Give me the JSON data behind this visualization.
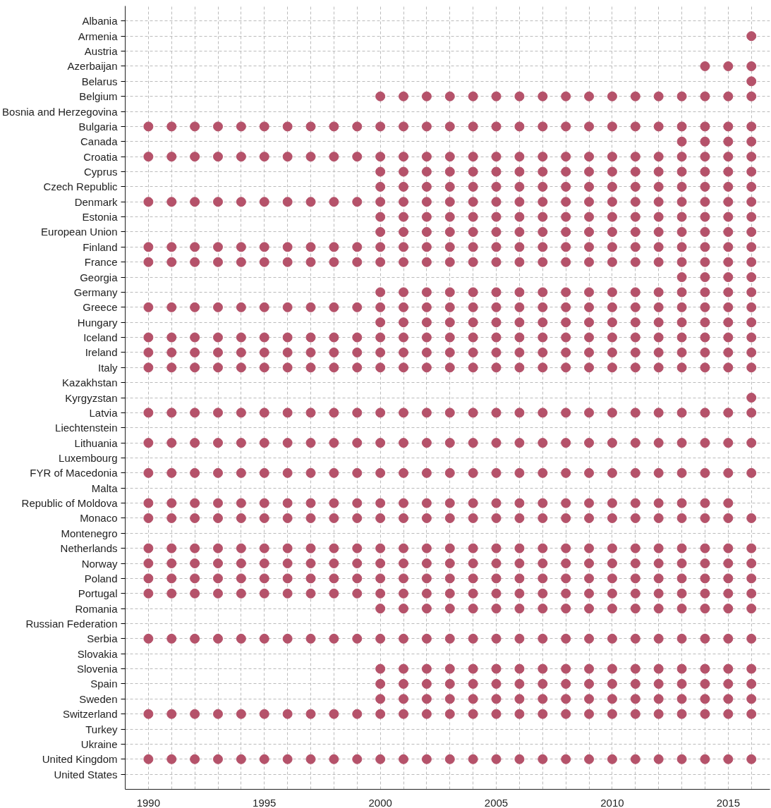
{
  "chart_data": {
    "type": "scatter",
    "orientation": "horizontal",
    "marker": "circle",
    "color": "#b5526a",
    "grid": true,
    "categories": [
      "Albania",
      "Armenia",
      "Austria",
      "Azerbaijan",
      "Belarus",
      "Belgium",
      "Bosnia and Herzegovina",
      "Bulgaria",
      "Canada",
      "Croatia",
      "Cyprus",
      "Czech Republic",
      "Denmark",
      "Estonia",
      "European Union",
      "Finland",
      "France",
      "Georgia",
      "Germany",
      "Greece",
      "Hungary",
      "Iceland",
      "Ireland",
      "Italy",
      "Kazakhstan",
      "Kyrgyzstan",
      "Latvia",
      "Liechtenstein",
      "Lithuania",
      "Luxembourg",
      "FYR of Macedonia",
      "Malta",
      "Republic of Moldova",
      "Monaco",
      "Montenegro",
      "Netherlands",
      "Norway",
      "Poland",
      "Portugal",
      "Romania",
      "Russian Federation",
      "Serbia",
      "Slovakia",
      "Slovenia",
      "Spain",
      "Sweden",
      "Switzerland",
      "Turkey",
      "Ukraine",
      "United Kingdom",
      "United States"
    ],
    "xlim": [
      1989,
      2016.8
    ],
    "xticks": [
      1990,
      {
        "value": 1991,
        "label": null
      },
      {
        "value": 1992,
        "label": null
      },
      {
        "value": 1993,
        "label": null
      },
      {
        "value": 1994,
        "label": null
      },
      1995,
      {
        "value": 1996,
        "label": null
      },
      {
        "value": 1997,
        "label": null
      },
      {
        "value": 1998,
        "label": null
      },
      {
        "value": 1999,
        "label": null
      },
      2000,
      {
        "value": 2001,
        "label": null
      },
      {
        "value": 2002,
        "label": null
      },
      {
        "value": 2003,
        "label": null
      },
      {
        "value": 2004,
        "label": null
      },
      2005,
      {
        "value": 2006,
        "label": null
      },
      {
        "value": 2007,
        "label": null
      },
      {
        "value": 2008,
        "label": null
      },
      {
        "value": 2009,
        "label": null
      },
      2010,
      {
        "value": 2011,
        "label": null
      },
      {
        "value": 2012,
        "label": null
      },
      {
        "value": 2013,
        "label": null
      },
      {
        "value": 2014,
        "label": null
      },
      2015,
      {
        "value": 2016,
        "label": null
      }
    ],
    "series": [
      {
        "values": [
          null,
          null,
          null,
          null,
          null,
          null,
          null,
          1990,
          null,
          1990,
          null,
          null,
          1990,
          null,
          null,
          1990,
          1990,
          null,
          null,
          1990,
          null,
          1990,
          1990,
          1990,
          null,
          null,
          1990,
          null,
          1990,
          null,
          1990,
          null,
          1990,
          1990,
          null,
          1990,
          1990,
          1990,
          1990,
          null,
          null,
          1990,
          null,
          null,
          null,
          null,
          1990,
          null,
          null,
          1990,
          null
        ]
      },
      {
        "values": [
          null,
          null,
          null,
          null,
          null,
          null,
          null,
          1991,
          null,
          1991,
          null,
          null,
          1991,
          null,
          null,
          1991,
          1991,
          null,
          null,
          1991,
          null,
          1991,
          1991,
          1991,
          null,
          null,
          1991,
          null,
          1991,
          null,
          1991,
          null,
          1991,
          1991,
          null,
          1991,
          1991,
          1991,
          1991,
          null,
          null,
          1991,
          null,
          null,
          null,
          null,
          1991,
          null,
          null,
          1991,
          null
        ]
      },
      {
        "values": [
          null,
          null,
          null,
          null,
          null,
          null,
          null,
          1992,
          null,
          1992,
          null,
          null,
          1992,
          null,
          null,
          1992,
          1992,
          null,
          null,
          1992,
          null,
          1992,
          1992,
          1992,
          null,
          null,
          1992,
          null,
          1992,
          null,
          1992,
          null,
          1992,
          1992,
          null,
          1992,
          1992,
          1992,
          1992,
          null,
          null,
          1992,
          null,
          null,
          null,
          null,
          1992,
          null,
          null,
          1992,
          null
        ]
      },
      {
        "values": [
          null,
          null,
          null,
          null,
          null,
          null,
          null,
          1993,
          null,
          1993,
          null,
          null,
          1993,
          null,
          null,
          1993,
          1993,
          null,
          null,
          1993,
          null,
          1993,
          1993,
          1993,
          null,
          null,
          1993,
          null,
          1993,
          null,
          1993,
          null,
          1993,
          1993,
          null,
          1993,
          1993,
          1993,
          1993,
          null,
          null,
          1993,
          null,
          null,
          null,
          null,
          1993,
          null,
          null,
          1993,
          null
        ]
      },
      {
        "values": [
          null,
          null,
          null,
          null,
          null,
          null,
          null,
          1994,
          null,
          1994,
          null,
          null,
          1994,
          null,
          null,
          1994,
          1994,
          null,
          null,
          1994,
          null,
          1994,
          1994,
          1994,
          null,
          null,
          1994,
          null,
          1994,
          null,
          1994,
          null,
          1994,
          1994,
          null,
          1994,
          1994,
          1994,
          1994,
          null,
          null,
          1994,
          null,
          null,
          null,
          null,
          1994,
          null,
          null,
          1994,
          null
        ]
      },
      {
        "values": [
          null,
          null,
          null,
          null,
          null,
          null,
          null,
          1995,
          null,
          1995,
          null,
          null,
          1995,
          null,
          null,
          1995,
          1995,
          null,
          null,
          1995,
          null,
          1995,
          1995,
          1995,
          null,
          null,
          1995,
          null,
          1995,
          null,
          1995,
          null,
          1995,
          1995,
          null,
          1995,
          1995,
          1995,
          1995,
          null,
          null,
          1995,
          null,
          null,
          null,
          null,
          1995,
          null,
          null,
          1995,
          null
        ]
      },
      {
        "values": [
          null,
          null,
          null,
          null,
          null,
          null,
          null,
          1996,
          null,
          1996,
          null,
          null,
          1996,
          null,
          null,
          1996,
          1996,
          null,
          null,
          1996,
          null,
          1996,
          1996,
          1996,
          null,
          null,
          1996,
          null,
          1996,
          null,
          1996,
          null,
          1996,
          1996,
          null,
          1996,
          1996,
          1996,
          1996,
          null,
          null,
          1996,
          null,
          null,
          null,
          null,
          1996,
          null,
          null,
          1996,
          null
        ]
      },
      {
        "values": [
          null,
          null,
          null,
          null,
          null,
          null,
          null,
          1997,
          null,
          1997,
          null,
          null,
          1997,
          null,
          null,
          1997,
          1997,
          null,
          null,
          1997,
          null,
          1997,
          1997,
          1997,
          null,
          null,
          1997,
          null,
          1997,
          null,
          1997,
          null,
          1997,
          1997,
          null,
          1997,
          1997,
          1997,
          1997,
          null,
          null,
          1997,
          null,
          null,
          null,
          null,
          1997,
          null,
          null,
          1997,
          null
        ]
      },
      {
        "values": [
          null,
          null,
          null,
          null,
          null,
          null,
          null,
          1998,
          null,
          1998,
          null,
          null,
          1998,
          null,
          null,
          1998,
          1998,
          null,
          null,
          1998,
          null,
          1998,
          1998,
          1998,
          null,
          null,
          1998,
          null,
          1998,
          null,
          1998,
          null,
          1998,
          1998,
          null,
          1998,
          1998,
          1998,
          1998,
          null,
          null,
          1998,
          null,
          null,
          null,
          null,
          1998,
          null,
          null,
          1998,
          null
        ]
      },
      {
        "values": [
          null,
          null,
          null,
          null,
          null,
          null,
          null,
          1999,
          null,
          1999,
          null,
          null,
          1999,
          null,
          null,
          1999,
          1999,
          null,
          null,
          1999,
          null,
          1999,
          1999,
          1999,
          null,
          null,
          1999,
          null,
          1999,
          null,
          1999,
          null,
          1999,
          1999,
          null,
          1999,
          1999,
          1999,
          1999,
          null,
          null,
          1999,
          null,
          null,
          null,
          null,
          1999,
          null,
          null,
          1999,
          null
        ]
      },
      {
        "values": [
          null,
          null,
          null,
          null,
          null,
          2000,
          null,
          2000,
          null,
          2000,
          2000,
          2000,
          2000,
          2000,
          2000,
          2000,
          2000,
          null,
          2000,
          2000,
          2000,
          2000,
          2000,
          2000,
          null,
          null,
          2000,
          null,
          2000,
          null,
          2000,
          null,
          2000,
          2000,
          null,
          2000,
          2000,
          2000,
          2000,
          2000,
          null,
          2000,
          null,
          2000,
          2000,
          2000,
          2000,
          null,
          null,
          2000,
          null
        ]
      },
      {
        "values": [
          null,
          null,
          null,
          null,
          null,
          2001,
          null,
          2001,
          null,
          2001,
          2001,
          2001,
          2001,
          2001,
          2001,
          2001,
          2001,
          null,
          2001,
          2001,
          2001,
          2001,
          2001,
          2001,
          null,
          null,
          2001,
          null,
          2001,
          null,
          2001,
          null,
          2001,
          2001,
          null,
          2001,
          2001,
          2001,
          2001,
          2001,
          null,
          2001,
          null,
          2001,
          2001,
          2001,
          2001,
          null,
          null,
          2001,
          null
        ]
      },
      {
        "values": [
          null,
          null,
          null,
          null,
          null,
          2002,
          null,
          2002,
          null,
          2002,
          2002,
          2002,
          2002,
          2002,
          2002,
          2002,
          2002,
          null,
          2002,
          2002,
          2002,
          2002,
          2002,
          2002,
          null,
          null,
          2002,
          null,
          2002,
          null,
          2002,
          null,
          2002,
          2002,
          null,
          2002,
          2002,
          2002,
          2002,
          2002,
          null,
          2002,
          null,
          2002,
          2002,
          2002,
          2002,
          null,
          null,
          2002,
          null
        ]
      },
      {
        "values": [
          null,
          null,
          null,
          null,
          null,
          2003,
          null,
          2003,
          null,
          2003,
          2003,
          2003,
          2003,
          2003,
          2003,
          2003,
          2003,
          null,
          2003,
          2003,
          2003,
          2003,
          2003,
          2003,
          null,
          null,
          2003,
          null,
          2003,
          null,
          2003,
          null,
          2003,
          2003,
          null,
          2003,
          2003,
          2003,
          2003,
          2003,
          null,
          2003,
          null,
          2003,
          2003,
          2003,
          2003,
          null,
          null,
          2003,
          null
        ]
      },
      {
        "values": [
          null,
          null,
          null,
          null,
          null,
          2004,
          null,
          2004,
          null,
          2004,
          2004,
          2004,
          2004,
          2004,
          2004,
          2004,
          2004,
          null,
          2004,
          2004,
          2004,
          2004,
          2004,
          2004,
          null,
          null,
          2004,
          null,
          2004,
          null,
          2004,
          null,
          2004,
          2004,
          null,
          2004,
          2004,
          2004,
          2004,
          2004,
          null,
          2004,
          null,
          2004,
          2004,
          2004,
          2004,
          null,
          null,
          2004,
          null
        ]
      },
      {
        "values": [
          null,
          null,
          null,
          null,
          null,
          2005,
          null,
          2005,
          null,
          2005,
          2005,
          2005,
          2005,
          2005,
          2005,
          2005,
          2005,
          null,
          2005,
          2005,
          2005,
          2005,
          2005,
          2005,
          null,
          null,
          2005,
          null,
          2005,
          null,
          2005,
          null,
          2005,
          2005,
          null,
          2005,
          2005,
          2005,
          2005,
          2005,
          null,
          2005,
          null,
          2005,
          2005,
          2005,
          2005,
          null,
          null,
          2005,
          null
        ]
      },
      {
        "values": [
          null,
          null,
          null,
          null,
          null,
          2006,
          null,
          2006,
          null,
          2006,
          2006,
          2006,
          2006,
          2006,
          2006,
          2006,
          2006,
          null,
          2006,
          2006,
          2006,
          2006,
          2006,
          2006,
          null,
          null,
          2006,
          null,
          2006,
          null,
          2006,
          null,
          2006,
          2006,
          null,
          2006,
          2006,
          2006,
          2006,
          2006,
          null,
          2006,
          null,
          2006,
          2006,
          2006,
          2006,
          null,
          null,
          2006,
          null
        ]
      },
      {
        "values": [
          null,
          null,
          null,
          null,
          null,
          2007,
          null,
          2007,
          null,
          2007,
          2007,
          2007,
          2007,
          2007,
          2007,
          2007,
          2007,
          null,
          2007,
          2007,
          2007,
          2007,
          2007,
          2007,
          null,
          null,
          2007,
          null,
          2007,
          null,
          2007,
          null,
          2007,
          2007,
          null,
          2007,
          2007,
          2007,
          2007,
          2007,
          null,
          2007,
          null,
          2007,
          2007,
          2007,
          2007,
          null,
          null,
          2007,
          null
        ]
      },
      {
        "values": [
          null,
          null,
          null,
          null,
          null,
          2008,
          null,
          2008,
          null,
          2008,
          2008,
          2008,
          2008,
          2008,
          2008,
          2008,
          2008,
          null,
          2008,
          2008,
          2008,
          2008,
          2008,
          2008,
          null,
          null,
          2008,
          null,
          2008,
          null,
          2008,
          null,
          2008,
          2008,
          null,
          2008,
          2008,
          2008,
          2008,
          2008,
          null,
          2008,
          null,
          2008,
          2008,
          2008,
          2008,
          null,
          null,
          2008,
          null
        ]
      },
      {
        "values": [
          null,
          null,
          null,
          null,
          null,
          2009,
          null,
          2009,
          null,
          2009,
          2009,
          2009,
          2009,
          2009,
          2009,
          2009,
          2009,
          null,
          2009,
          2009,
          2009,
          2009,
          2009,
          2009,
          null,
          null,
          2009,
          null,
          2009,
          null,
          2009,
          null,
          2009,
          2009,
          null,
          2009,
          2009,
          2009,
          2009,
          2009,
          null,
          2009,
          null,
          2009,
          2009,
          2009,
          2009,
          null,
          null,
          2009,
          null
        ]
      },
      {
        "values": [
          null,
          null,
          null,
          null,
          null,
          2010,
          null,
          2010,
          null,
          2010,
          2010,
          2010,
          2010,
          2010,
          2010,
          2010,
          2010,
          null,
          2010,
          2010,
          2010,
          2010,
          2010,
          2010,
          null,
          null,
          2010,
          null,
          2010,
          null,
          2010,
          null,
          2010,
          2010,
          null,
          2010,
          2010,
          2010,
          2010,
          2010,
          null,
          2010,
          null,
          2010,
          2010,
          2010,
          2010,
          null,
          null,
          2010,
          null
        ]
      },
      {
        "values": [
          null,
          null,
          null,
          null,
          null,
          2011,
          null,
          2011,
          null,
          2011,
          2011,
          2011,
          2011,
          2011,
          2011,
          2011,
          2011,
          null,
          2011,
          2011,
          2011,
          2011,
          2011,
          2011,
          null,
          null,
          2011,
          null,
          2011,
          null,
          2011,
          null,
          2011,
          2011,
          null,
          2011,
          2011,
          2011,
          2011,
          2011,
          null,
          2011,
          null,
          2011,
          2011,
          2011,
          2011,
          null,
          null,
          2011,
          null
        ]
      },
      {
        "values": [
          null,
          null,
          null,
          null,
          null,
          2012,
          null,
          2012,
          null,
          2012,
          2012,
          2012,
          2012,
          2012,
          2012,
          2012,
          2012,
          null,
          2012,
          2012,
          2012,
          2012,
          2012,
          2012,
          null,
          null,
          2012,
          null,
          2012,
          null,
          2012,
          null,
          2012,
          2012,
          null,
          2012,
          2012,
          2012,
          2012,
          2012,
          null,
          2012,
          null,
          2012,
          2012,
          2012,
          2012,
          null,
          null,
          2012,
          null
        ]
      },
      {
        "values": [
          null,
          null,
          null,
          null,
          null,
          2013,
          null,
          2013,
          2013,
          2013,
          2013,
          2013,
          2013,
          2013,
          2013,
          2013,
          2013,
          2013,
          2013,
          2013,
          2013,
          2013,
          2013,
          2013,
          null,
          null,
          2013,
          null,
          2013,
          null,
          2013,
          null,
          2013,
          2013,
          null,
          2013,
          2013,
          2013,
          2013,
          2013,
          null,
          2013,
          null,
          2013,
          2013,
          2013,
          2013,
          null,
          null,
          2013,
          null
        ]
      },
      {
        "values": [
          null,
          null,
          null,
          2014,
          null,
          2014,
          null,
          2014,
          2014,
          2014,
          2014,
          2014,
          2014,
          2014,
          2014,
          2014,
          2014,
          2014,
          2014,
          2014,
          2014,
          2014,
          2014,
          2014,
          null,
          null,
          2014,
          null,
          2014,
          null,
          2014,
          null,
          2014,
          2014,
          null,
          2014,
          2014,
          2014,
          2014,
          2014,
          null,
          2014,
          null,
          2014,
          2014,
          2014,
          2014,
          null,
          null,
          2014,
          null
        ]
      },
      {
        "values": [
          null,
          null,
          null,
          2015,
          null,
          2015,
          null,
          2015,
          2015,
          2015,
          2015,
          2015,
          2015,
          2015,
          2015,
          2015,
          2015,
          2015,
          2015,
          2015,
          2015,
          2015,
          2015,
          2015,
          null,
          null,
          2015,
          null,
          2015,
          null,
          2015,
          null,
          2015,
          2015,
          null,
          2015,
          2015,
          2015,
          2015,
          2015,
          null,
          2015,
          null,
          2015,
          2015,
          2015,
          2015,
          null,
          null,
          2015,
          null
        ]
      },
      {
        "values": [
          null,
          2016,
          null,
          2016,
          2016,
          2016,
          null,
          2016,
          2016,
          2016,
          2016,
          2016,
          2016,
          2016,
          2016,
          2016,
          2016,
          2016,
          2016,
          2016,
          2016,
          2016,
          2016,
          2016,
          null,
          2016,
          2016,
          null,
          2016,
          null,
          2016,
          null,
          null,
          2016,
          null,
          2016,
          2016,
          2016,
          2016,
          2016,
          null,
          2016,
          null,
          2016,
          2016,
          2016,
          2016,
          null,
          null,
          2016,
          null
        ]
      }
    ]
  }
}
